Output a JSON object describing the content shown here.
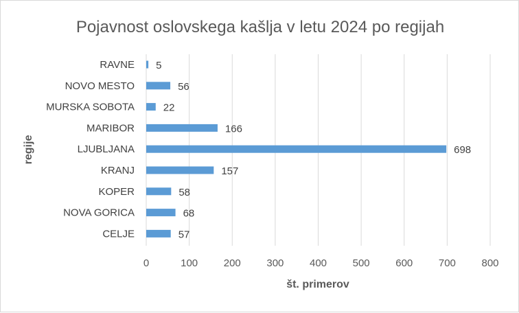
{
  "chart_data": {
    "type": "bar",
    "orientation": "horizontal",
    "title": "Pojavnost oslovskega kašlja v letu 2024 po regijah",
    "xlabel": "št. primerov",
    "ylabel": "regije",
    "categories": [
      "RAVNE",
      "NOVO MESTO",
      "MURSKA SOBOTA",
      "MARIBOR",
      "LJUBLJANA",
      "KRANJ",
      "KOPER",
      "NOVA GORICA",
      "CELJE"
    ],
    "values": [
      5,
      56,
      22,
      166,
      698,
      157,
      58,
      68,
      57
    ],
    "xlim": [
      0,
      800
    ],
    "xticks": [
      "0",
      "100",
      "200",
      "300",
      "400",
      "500",
      "600",
      "700",
      "800"
    ],
    "grid": true,
    "legend": "none",
    "bar_color": "#5b9bd5"
  }
}
